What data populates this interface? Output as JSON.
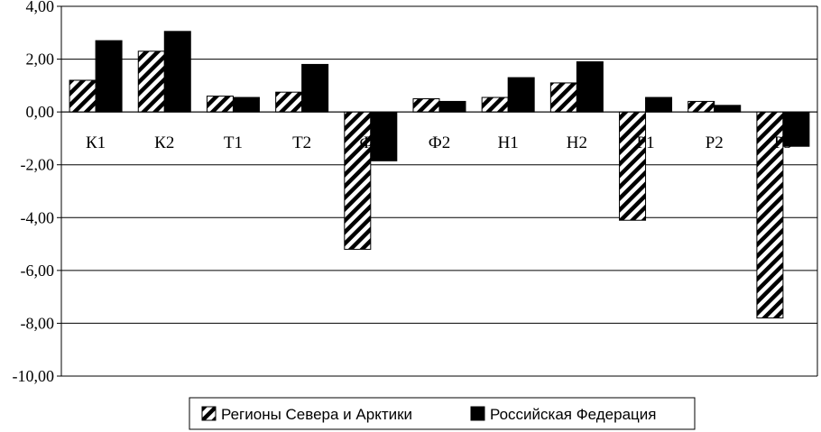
{
  "chart_data": {
    "type": "bar",
    "categories": [
      "К1",
      "К2",
      "Т1",
      "Т2",
      "Ф1",
      "Ф2",
      "Н1",
      "Н2",
      "Р1",
      "Р2",
      "Р3"
    ],
    "series": [
      {
        "name": "Регионы Севера и Арктики",
        "pattern": "hatch",
        "color": "#000000",
        "values": [
          1.2,
          2.3,
          0.6,
          0.75,
          -5.2,
          0.5,
          0.55,
          1.1,
          -4.1,
          0.4,
          -7.8
        ]
      },
      {
        "name": "Российская Федерация",
        "pattern": "solid",
        "color": "#000000",
        "values": [
          2.7,
          3.05,
          0.55,
          1.8,
          -1.85,
          0.4,
          1.3,
          1.9,
          0.55,
          0.25,
          -1.3
        ]
      }
    ],
    "yticks": [
      "4,00",
      "2,00",
      "0,00",
      "-2,00",
      "-4,00",
      "-6,00",
      "-8,00",
      "-10,00"
    ],
    "ylim": [
      -10,
      4
    ],
    "ystep": 2,
    "grid": true,
    "legend_position": "bottom",
    "title": "",
    "xlabel": "",
    "ylabel": ""
  }
}
